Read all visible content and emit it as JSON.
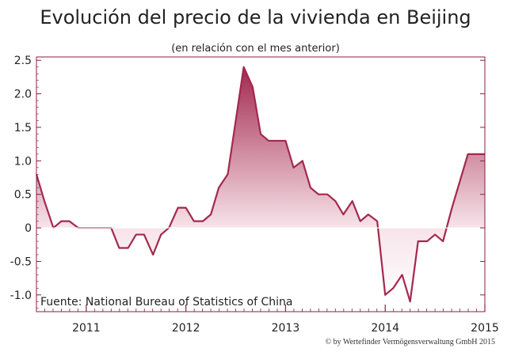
{
  "chart_data": {
    "type": "area",
    "title": "Evolución del precio de la vivienda en Beijing",
    "subtitle": "(en relación con el mes anterior)",
    "source": "Fuente: National Bureau of Statistics of China",
    "copyright": "© by Wertefinder Vermögensverwaltung GmbH 2015",
    "ylim": [
      -1.25,
      2.55
    ],
    "yticks": [
      2.5,
      2.0,
      1.5,
      1.0,
      0.5,
      0,
      -0.5,
      -1.0
    ],
    "ytick_labels": [
      "2.5",
      "2.0",
      "1.5",
      "1.0",
      "0.5",
      "0",
      "-0.5",
      "-1.0"
    ],
    "xlim": [
      2010.5,
      2015.0
    ],
    "xticks": [
      2011,
      2012,
      2013,
      2014,
      2015
    ],
    "xtick_labels": [
      "2011",
      "2012",
      "2013",
      "2014",
      "2015"
    ],
    "grid": false,
    "colors": {
      "line": "#a3284f",
      "fill_top": "#a3284f",
      "fill_zero": "#f7e4ea",
      "axis": "#8b1f42"
    },
    "x": [
      2010.5,
      2010.58,
      2010.67,
      2010.75,
      2010.83,
      2010.92,
      2011.0,
      2011.08,
      2011.17,
      2011.25,
      2011.33,
      2011.42,
      2011.5,
      2011.58,
      2011.67,
      2011.75,
      2011.83,
      2011.92,
      2012.0,
      2012.08,
      2012.17,
      2012.25,
      2012.33,
      2012.42,
      2012.5,
      2012.58,
      2012.67,
      2012.75,
      2012.83,
      2012.92,
      2013.0,
      2013.08,
      2013.17,
      2013.25,
      2013.33,
      2013.42,
      2013.5,
      2013.58,
      2013.67,
      2013.75,
      2013.83,
      2013.92,
      2014.0,
      2014.08,
      2014.17,
      2014.25,
      2014.33,
      2014.42,
      2014.5,
      2014.58,
      2014.67,
      2014.75,
      2014.83,
      2014.92,
      2015.0
    ],
    "values": [
      0.8,
      0.4,
      0.0,
      0.1,
      0.1,
      0.0,
      0.0,
      0.0,
      0.0,
      0.0,
      -0.3,
      -0.3,
      -0.1,
      -0.1,
      -0.4,
      -0.1,
      0.0,
      0.3,
      0.3,
      0.1,
      0.1,
      0.2,
      0.6,
      0.8,
      1.6,
      2.4,
      2.1,
      1.4,
      1.3,
      1.3,
      1.3,
      0.9,
      1.0,
      0.6,
      0.5,
      0.5,
      0.4,
      0.2,
      0.4,
      0.1,
      0.2,
      0.1,
      -1.0,
      -0.9,
      -0.7,
      -1.1,
      -0.2,
      -0.2,
      -0.1,
      -0.2,
      0.3,
      0.7,
      1.1,
      1.1,
      1.1
    ]
  }
}
